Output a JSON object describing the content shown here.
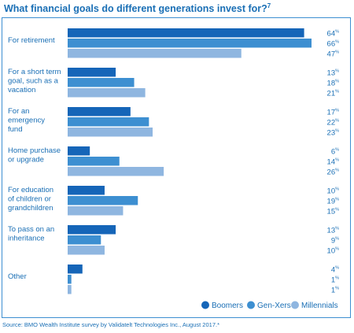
{
  "header": {
    "title": "What financial goals do different generations invest for?",
    "title_footnote": "7"
  },
  "footer": {
    "source": "Source: BMO Wealth Institute survey by Validatelt Technologies Inc., August 2017.*"
  },
  "colors": {
    "text": "#1a6fb5",
    "border": "#3d8fd1",
    "boomers": "#1565b8",
    "genx": "#3d8fd1",
    "millennials": "#8fb6e0"
  },
  "chart_data": {
    "type": "bar",
    "orientation": "horizontal",
    "categories": [
      [
        "For retirement"
      ],
      [
        "For a short term",
        "goal, such as a",
        "vacation"
      ],
      [
        "For an",
        "emergency",
        "fund"
      ],
      [
        "Home purchase",
        "or upgrade"
      ],
      [
        "For education",
        "of children or",
        "grandchildren"
      ],
      [
        "To pass on an",
        "inheritance"
      ],
      [
        "Other"
      ]
    ],
    "series": [
      {
        "name": "Boomers",
        "color": "#1565b8",
        "values": [
          64,
          13,
          17,
          6,
          10,
          13,
          4
        ]
      },
      {
        "name": "Gen-Xers",
        "color": "#3d8fd1",
        "values": [
          66,
          18,
          22,
          14,
          19,
          9,
          1
        ]
      },
      {
        "name": "Millennials",
        "color": "#8fb6e0",
        "values": [
          47,
          21,
          23,
          26,
          15,
          10,
          1
        ]
      }
    ],
    "value_suffix": "%",
    "xlim": [
      0,
      66
    ],
    "legend": "bottom-right",
    "grid": false
  }
}
